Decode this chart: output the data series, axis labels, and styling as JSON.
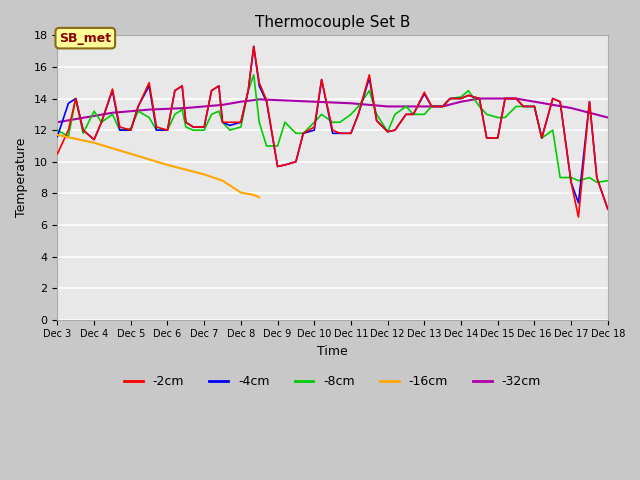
{
  "title": "Thermocouple Set B",
  "xlabel": "Time",
  "ylabel": "Temperature",
  "ylim": [
    0,
    18
  ],
  "yticks": [
    0,
    2,
    4,
    6,
    8,
    10,
    12,
    14,
    16,
    18
  ],
  "annotation_text": "SB_met",
  "annotation_color": "#8B0000",
  "annotation_bg": "#FFFF99",
  "fig_bg": "#C8C8C8",
  "plot_bg": "#E8E8E8",
  "series": {
    "-2cm": {
      "color": "#FF0000",
      "lw": 1.2
    },
    "-4cm": {
      "color": "#0000FF",
      "lw": 1.2
    },
    "-8cm": {
      "color": "#00CC00",
      "lw": 1.2
    },
    "-16cm": {
      "color": "#FFA500",
      "lw": 1.5
    },
    "-32cm": {
      "color": "#AA00AA",
      "lw": 1.5
    }
  },
  "x_labels": [
    "Dec 3",
    "Dec 4",
    "Dec 5",
    "Dec 6",
    "Dec 7",
    "Dec 8",
    "Dec 9",
    "Dec 10",
    "Dec 11",
    "Dec 12",
    "Dec 13",
    "Dec 14",
    "Dec 15",
    "Dec 16",
    "Dec 17",
    "Dec 18"
  ],
  "x_values": [
    3,
    4,
    5,
    6,
    7,
    8,
    9,
    10,
    11,
    12,
    13,
    14,
    15,
    16,
    17,
    18
  ],
  "data_2cm_x": [
    3.0,
    3.3,
    3.5,
    3.7,
    4.0,
    4.2,
    4.5,
    4.7,
    5.0,
    5.2,
    5.5,
    5.7,
    6.0,
    6.2,
    6.4,
    6.5,
    6.7,
    7.0,
    7.2,
    7.4,
    7.5,
    7.7,
    8.0,
    8.2,
    8.35,
    8.5,
    8.7,
    9.0,
    9.2,
    9.5,
    9.7,
    10.0,
    10.2,
    10.5,
    10.7,
    11.0,
    11.2,
    11.5,
    11.7,
    12.0,
    12.2,
    12.5,
    12.7,
    13.0,
    13.2,
    13.5,
    13.7,
    14.0,
    14.2,
    14.5,
    14.7,
    15.0,
    15.2,
    15.5,
    15.7,
    16.0,
    16.2,
    16.5,
    16.7,
    17.0,
    17.2,
    17.5,
    17.7,
    18.0
  ],
  "data_2cm_y": [
    10.5,
    12.0,
    14.0,
    12.0,
    11.4,
    12.5,
    14.6,
    12.2,
    12.0,
    13.5,
    15.0,
    12.2,
    12.0,
    14.5,
    14.8,
    12.5,
    12.2,
    12.2,
    14.5,
    14.8,
    12.5,
    12.5,
    12.5,
    14.5,
    17.3,
    15.0,
    13.9,
    9.7,
    9.8,
    10.0,
    11.8,
    12.2,
    15.2,
    12.0,
    11.8,
    11.8,
    13.0,
    15.5,
    12.6,
    11.9,
    12.0,
    13.0,
    13.0,
    14.4,
    13.5,
    13.5,
    14.0,
    14.0,
    14.2,
    14.0,
    11.5,
    11.5,
    14.0,
    14.0,
    13.5,
    13.5,
    11.5,
    14.0,
    13.8,
    8.7,
    6.5,
    13.8,
    9.0,
    7.0
  ],
  "data_4cm_x": [
    3.0,
    3.3,
    3.5,
    3.7,
    4.0,
    4.2,
    4.5,
    4.7,
    5.0,
    5.2,
    5.5,
    5.7,
    6.0,
    6.2,
    6.4,
    6.5,
    6.7,
    7.0,
    7.2,
    7.4,
    7.5,
    7.7,
    8.0,
    8.2,
    8.35,
    8.5,
    8.7,
    9.0,
    9.2,
    9.5,
    9.7,
    10.0,
    10.2,
    10.5,
    10.7,
    11.0,
    11.2,
    11.5,
    11.7,
    12.0,
    12.2,
    12.5,
    12.7,
    13.0,
    13.2,
    13.5,
    13.7,
    14.0,
    14.2,
    14.5,
    14.7,
    15.0,
    15.2,
    15.5,
    15.7,
    16.0,
    16.2,
    16.5,
    16.7,
    17.0,
    17.2,
    17.5,
    17.7,
    18.0
  ],
  "data_4cm_y": [
    11.6,
    13.7,
    14.0,
    12.0,
    11.4,
    12.5,
    14.5,
    12.0,
    12.0,
    13.5,
    14.8,
    12.0,
    12.0,
    14.5,
    14.8,
    12.5,
    12.2,
    12.2,
    14.5,
    14.8,
    12.5,
    12.3,
    12.5,
    14.5,
    17.3,
    14.8,
    13.8,
    9.7,
    9.8,
    10.0,
    11.8,
    12.0,
    15.2,
    11.8,
    11.8,
    11.8,
    13.0,
    15.3,
    12.6,
    11.9,
    12.0,
    13.0,
    13.0,
    14.3,
    13.5,
    13.5,
    14.0,
    14.0,
    14.2,
    14.0,
    11.5,
    11.5,
    14.0,
    14.0,
    13.5,
    13.5,
    11.5,
    14.0,
    13.8,
    8.7,
    7.4,
    13.8,
    9.0,
    7.0
  ],
  "data_8cm_x": [
    3.0,
    3.3,
    3.5,
    3.7,
    4.0,
    4.2,
    4.5,
    4.7,
    5.0,
    5.2,
    5.5,
    5.7,
    6.0,
    6.2,
    6.4,
    6.5,
    6.7,
    7.0,
    7.2,
    7.4,
    7.5,
    7.7,
    8.0,
    8.2,
    8.35,
    8.5,
    8.7,
    9.0,
    9.2,
    9.5,
    9.7,
    10.0,
    10.2,
    10.5,
    10.7,
    11.0,
    11.2,
    11.5,
    11.7,
    12.0,
    12.2,
    12.5,
    12.7,
    13.0,
    13.2,
    13.5,
    13.7,
    14.0,
    14.2,
    14.5,
    14.7,
    15.0,
    15.2,
    15.5,
    15.7,
    16.0,
    16.2,
    16.5,
    16.7,
    17.0,
    17.2,
    17.5,
    17.7,
    18.0
  ],
  "data_8cm_y": [
    12.0,
    11.6,
    14.0,
    11.8,
    13.2,
    12.5,
    13.0,
    12.0,
    12.1,
    13.2,
    12.8,
    12.0,
    12.0,
    13.0,
    13.3,
    12.2,
    12.0,
    12.0,
    13.0,
    13.2,
    12.5,
    12.0,
    12.2,
    14.5,
    15.5,
    12.5,
    11.0,
    11.0,
    12.5,
    11.8,
    11.8,
    12.5,
    13.0,
    12.5,
    12.5,
    13.0,
    13.5,
    14.5,
    13.0,
    11.9,
    13.0,
    13.5,
    13.0,
    13.0,
    13.5,
    13.5,
    14.0,
    14.1,
    14.5,
    13.5,
    13.0,
    12.8,
    12.8,
    13.5,
    13.5,
    13.5,
    11.5,
    12.0,
    9.0,
    9.0,
    8.8,
    9.0,
    8.7,
    8.8
  ],
  "data_16cm_x": [
    3.0,
    4.0,
    5.0,
    6.0,
    7.0,
    7.5,
    8.0,
    8.35,
    8.5
  ],
  "data_16cm_y": [
    11.7,
    11.2,
    10.5,
    9.8,
    9.2,
    8.8,
    8.05,
    7.9,
    7.75
  ],
  "data_32cm_x": [
    3.0,
    3.5,
    4.0,
    4.5,
    5.0,
    5.5,
    6.0,
    6.5,
    7.0,
    7.5,
    8.0,
    8.35,
    8.5,
    9.0,
    9.5,
    10.0,
    10.5,
    11.0,
    11.5,
    12.0,
    12.5,
    13.0,
    13.5,
    14.0,
    14.5,
    15.0,
    15.5,
    16.0,
    16.5,
    17.0,
    17.5,
    18.0
  ],
  "data_32cm_y": [
    12.5,
    12.7,
    12.9,
    13.1,
    13.2,
    13.3,
    13.35,
    13.4,
    13.5,
    13.6,
    13.8,
    13.9,
    13.95,
    13.9,
    13.85,
    13.8,
    13.75,
    13.7,
    13.6,
    13.5,
    13.5,
    13.5,
    13.5,
    13.8,
    14.0,
    14.0,
    14.0,
    13.8,
    13.6,
    13.4,
    13.1,
    12.8
  ]
}
